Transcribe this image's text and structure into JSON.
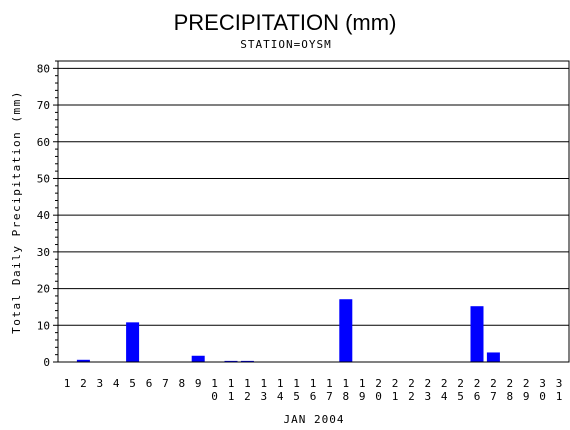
{
  "chart_data": {
    "type": "bar",
    "title": "PRECIPITATION (mm)",
    "subtitle": "STATION=OYSM",
    "xlabel": "JAN 2004",
    "ylabel": "Total Daily Precipitation (mm)",
    "ylim": [
      0,
      82
    ],
    "yticks": [
      0,
      10,
      20,
      30,
      40,
      50,
      60,
      70,
      80
    ],
    "grid": true,
    "bar_color": "#0000ff",
    "categories": [
      "1",
      "2",
      "3",
      "4",
      "5",
      "6",
      "7",
      "8",
      "9",
      "10",
      "11",
      "12",
      "13",
      "14",
      "15",
      "16",
      "17",
      "18",
      "19",
      "20",
      "21",
      "22",
      "23",
      "24",
      "25",
      "26",
      "27",
      "28",
      "29",
      "30",
      "31"
    ],
    "values": [
      0,
      0.6,
      0,
      0,
      10.8,
      0,
      0,
      0,
      1.7,
      0,
      0.3,
      0.3,
      0,
      0,
      0,
      0,
      0,
      17.1,
      0,
      0,
      0,
      0,
      0,
      0,
      0,
      15.2,
      2.6,
      0,
      0,
      0,
      0
    ]
  }
}
